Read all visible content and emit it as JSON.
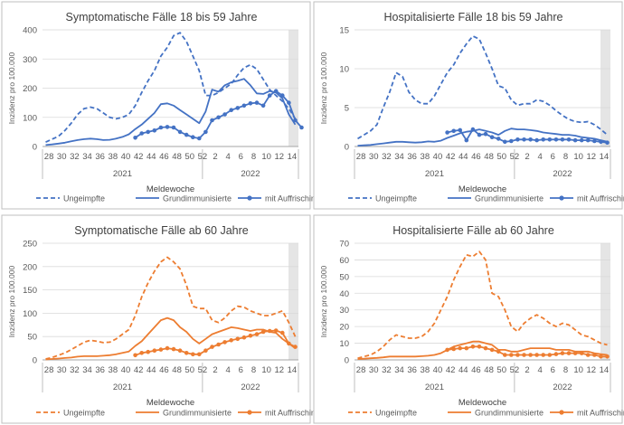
{
  "colors": {
    "blue": "#4472C4",
    "orange": "#ED7D31",
    "axis_text": "#595959",
    "grid": "#D9D9D9",
    "shade": "#E5E5E5",
    "panel_border": "#BFBFBF"
  },
  "x_ticks": [
    "28",
    "30",
    "32",
    "34",
    "36",
    "38",
    "40",
    "42",
    "44",
    "46",
    "48",
    "50",
    "52",
    "2",
    "4",
    "6",
    "8",
    "10",
    "12",
    "14"
  ],
  "year_labels": [
    "2021",
    "2022"
  ],
  "chart_data": [
    {
      "type": "line",
      "title": "Symptomatische Fälle 18 bis 59 Jahre",
      "xlabel": "Meldewoche",
      "ylabel": "Inzidenz pro 100.000",
      "ylim": [
        0,
        400
      ],
      "yticks": [
        0,
        100,
        200,
        300,
        400
      ],
      "color": "blue",
      "series": [
        {
          "name": "Ungeimpfte",
          "style": "dashed",
          "values": [
            15,
            25,
            35,
            55,
            80,
            110,
            130,
            135,
            130,
            115,
            100,
            95,
            100,
            110,
            140,
            185,
            225,
            260,
            310,
            340,
            380,
            390,
            360,
            310,
            260,
            175,
            175,
            185,
            200,
            215,
            245,
            270,
            280,
            265,
            230,
            195,
            175,
            155,
            130,
            95
          ]
        },
        {
          "name": "Grundimmunisierte",
          "style": "solid",
          "values": [
            5,
            7,
            10,
            13,
            18,
            22,
            25,
            27,
            25,
            22,
            23,
            27,
            33,
            42,
            60,
            75,
            95,
            115,
            145,
            148,
            140,
            125,
            110,
            95,
            80,
            120,
            195,
            188,
            210,
            220,
            225,
            232,
            210,
            182,
            180,
            190,
            185,
            165,
            110,
            75
          ]
        },
        {
          "name": "mit Auffrischimpfung",
          "style": "marker",
          "start": 14,
          "values": [
            30,
            45,
            50,
            55,
            65,
            67,
            65,
            50,
            40,
            32,
            28,
            50,
            90,
            100,
            110,
            125,
            132,
            140,
            148,
            150,
            140,
            175,
            190,
            175,
            150,
            90,
            65
          ]
        }
      ]
    },
    {
      "type": "line",
      "title": "Hospitalisierte Fälle 18 bis 59 Jahre",
      "xlabel": "Meldewoche",
      "ylabel": "Inzidenz pro 100.000",
      "ylim": [
        0,
        15
      ],
      "yticks": [
        0,
        5,
        10,
        15
      ],
      "color": "blue",
      "series": [
        {
          "name": "Ungeimpfte",
          "style": "dashed",
          "values": [
            1.0,
            1.5,
            2.0,
            2.8,
            5.0,
            7.0,
            9.5,
            9.0,
            7.0,
            6.0,
            5.5,
            5.5,
            6.5,
            8.0,
            9.5,
            10.5,
            12.0,
            13.2,
            14.2,
            13.8,
            12.0,
            10.0,
            7.8,
            7.5,
            6.0,
            5.3,
            5.5,
            5.5,
            6.0,
            5.8,
            5.3,
            4.6,
            4.0,
            3.5,
            3.2,
            3.1,
            3.2,
            2.8,
            2.2,
            1.5
          ]
        },
        {
          "name": "Grundimmunisierte",
          "style": "solid",
          "values": [
            0.1,
            0.15,
            0.2,
            0.3,
            0.4,
            0.5,
            0.6,
            0.6,
            0.55,
            0.5,
            0.55,
            0.65,
            0.6,
            0.75,
            1.1,
            1.4,
            1.7,
            1.9,
            2.0,
            2.2,
            2.0,
            1.8,
            1.5,
            2.0,
            2.3,
            2.2,
            2.2,
            2.1,
            2.0,
            1.8,
            1.7,
            1.6,
            1.5,
            1.5,
            1.4,
            1.2,
            1.1,
            1.0,
            0.8,
            0.6
          ]
        },
        {
          "name": "mit Auffrischimpfung",
          "style": "marker",
          "start": 14,
          "values": [
            1.8,
            2.0,
            2.1,
            0.8,
            2.2,
            1.5,
            1.6,
            1.2,
            1.0,
            0.6,
            0.7,
            0.9,
            0.9,
            0.9,
            0.8,
            0.9,
            0.9,
            0.9,
            0.9,
            0.9,
            0.8,
            0.8,
            0.8,
            0.7,
            0.6,
            0.5
          ]
        }
      ]
    },
    {
      "type": "line",
      "title": "Symptomatische Fälle ab 60 Jahre",
      "xlabel": "Meldewoche",
      "ylabel": "Inzidenz pro 100.000",
      "ylim": [
        0,
        250
      ],
      "yticks": [
        0,
        50,
        100,
        150,
        200,
        250
      ],
      "color": "orange",
      "series": [
        {
          "name": "Ungeimpfte",
          "style": "dashed",
          "values": [
            2,
            5,
            10,
            15,
            22,
            30,
            38,
            42,
            40,
            37,
            38,
            45,
            55,
            65,
            95,
            135,
            165,
            190,
            210,
            220,
            210,
            195,
            160,
            115,
            110,
            110,
            85,
            80,
            90,
            105,
            115,
            113,
            105,
            100,
            95,
            95,
            100,
            105,
            80,
            50
          ]
        },
        {
          "name": "Grundimmunisierte",
          "style": "solid",
          "values": [
            1,
            2,
            3,
            4,
            5,
            7,
            8,
            8,
            8,
            9,
            10,
            12,
            15,
            18,
            30,
            40,
            55,
            70,
            85,
            90,
            85,
            70,
            60,
            45,
            35,
            45,
            55,
            60,
            65,
            70,
            68,
            65,
            62,
            65,
            65,
            60,
            58,
            45,
            35,
            25
          ]
        },
        {
          "name": "mit Auffrischimpfung",
          "style": "marker",
          "start": 14,
          "values": [
            10,
            15,
            17,
            20,
            22,
            25,
            23,
            20,
            15,
            12,
            12,
            20,
            28,
            33,
            38,
            42,
            45,
            48,
            52,
            55,
            60,
            62,
            63,
            58,
            35,
            28
          ]
        }
      ]
    },
    {
      "type": "line",
      "title": "Hospitalisierte Fälle ab 60 Jahre",
      "xlabel": "Meldewoche",
      "ylabel": "Inzidenz pro 100.000",
      "ylim": [
        0,
        70
      ],
      "yticks": [
        0,
        10,
        20,
        30,
        40,
        50,
        60,
        70
      ],
      "color": "orange",
      "series": [
        {
          "name": "Ungeimpfte",
          "style": "dashed",
          "values": [
            1,
            2,
            3,
            5,
            8,
            12,
            15,
            14,
            13,
            13,
            14,
            17,
            22,
            30,
            38,
            48,
            56,
            63,
            62,
            65,
            60,
            40,
            38,
            30,
            20,
            17,
            22,
            25,
            27,
            25,
            22,
            20,
            22,
            21,
            18,
            15,
            14,
            12,
            10,
            9
          ]
        },
        {
          "name": "Grundimmunisierte",
          "style": "solid",
          "values": [
            0.5,
            0.7,
            1,
            1.2,
            1.5,
            2,
            2,
            2,
            2,
            2,
            2.2,
            2.5,
            3,
            4,
            6,
            8,
            9,
            10,
            11,
            11,
            10,
            9,
            6,
            6,
            5,
            5,
            6,
            7,
            7,
            7,
            7,
            6,
            6,
            6,
            5,
            5,
            5,
            4,
            3.5,
            3
          ]
        },
        {
          "name": "mit Auffrischimpfung",
          "style": "marker",
          "start": 14,
          "values": [
            6,
            6.5,
            7,
            7,
            8,
            8,
            7,
            6,
            5,
            3,
            3,
            3,
            3,
            3,
            3,
            3,
            3,
            3.5,
            4,
            4,
            4,
            4,
            3,
            3,
            2,
            2
          ]
        }
      ]
    }
  ]
}
